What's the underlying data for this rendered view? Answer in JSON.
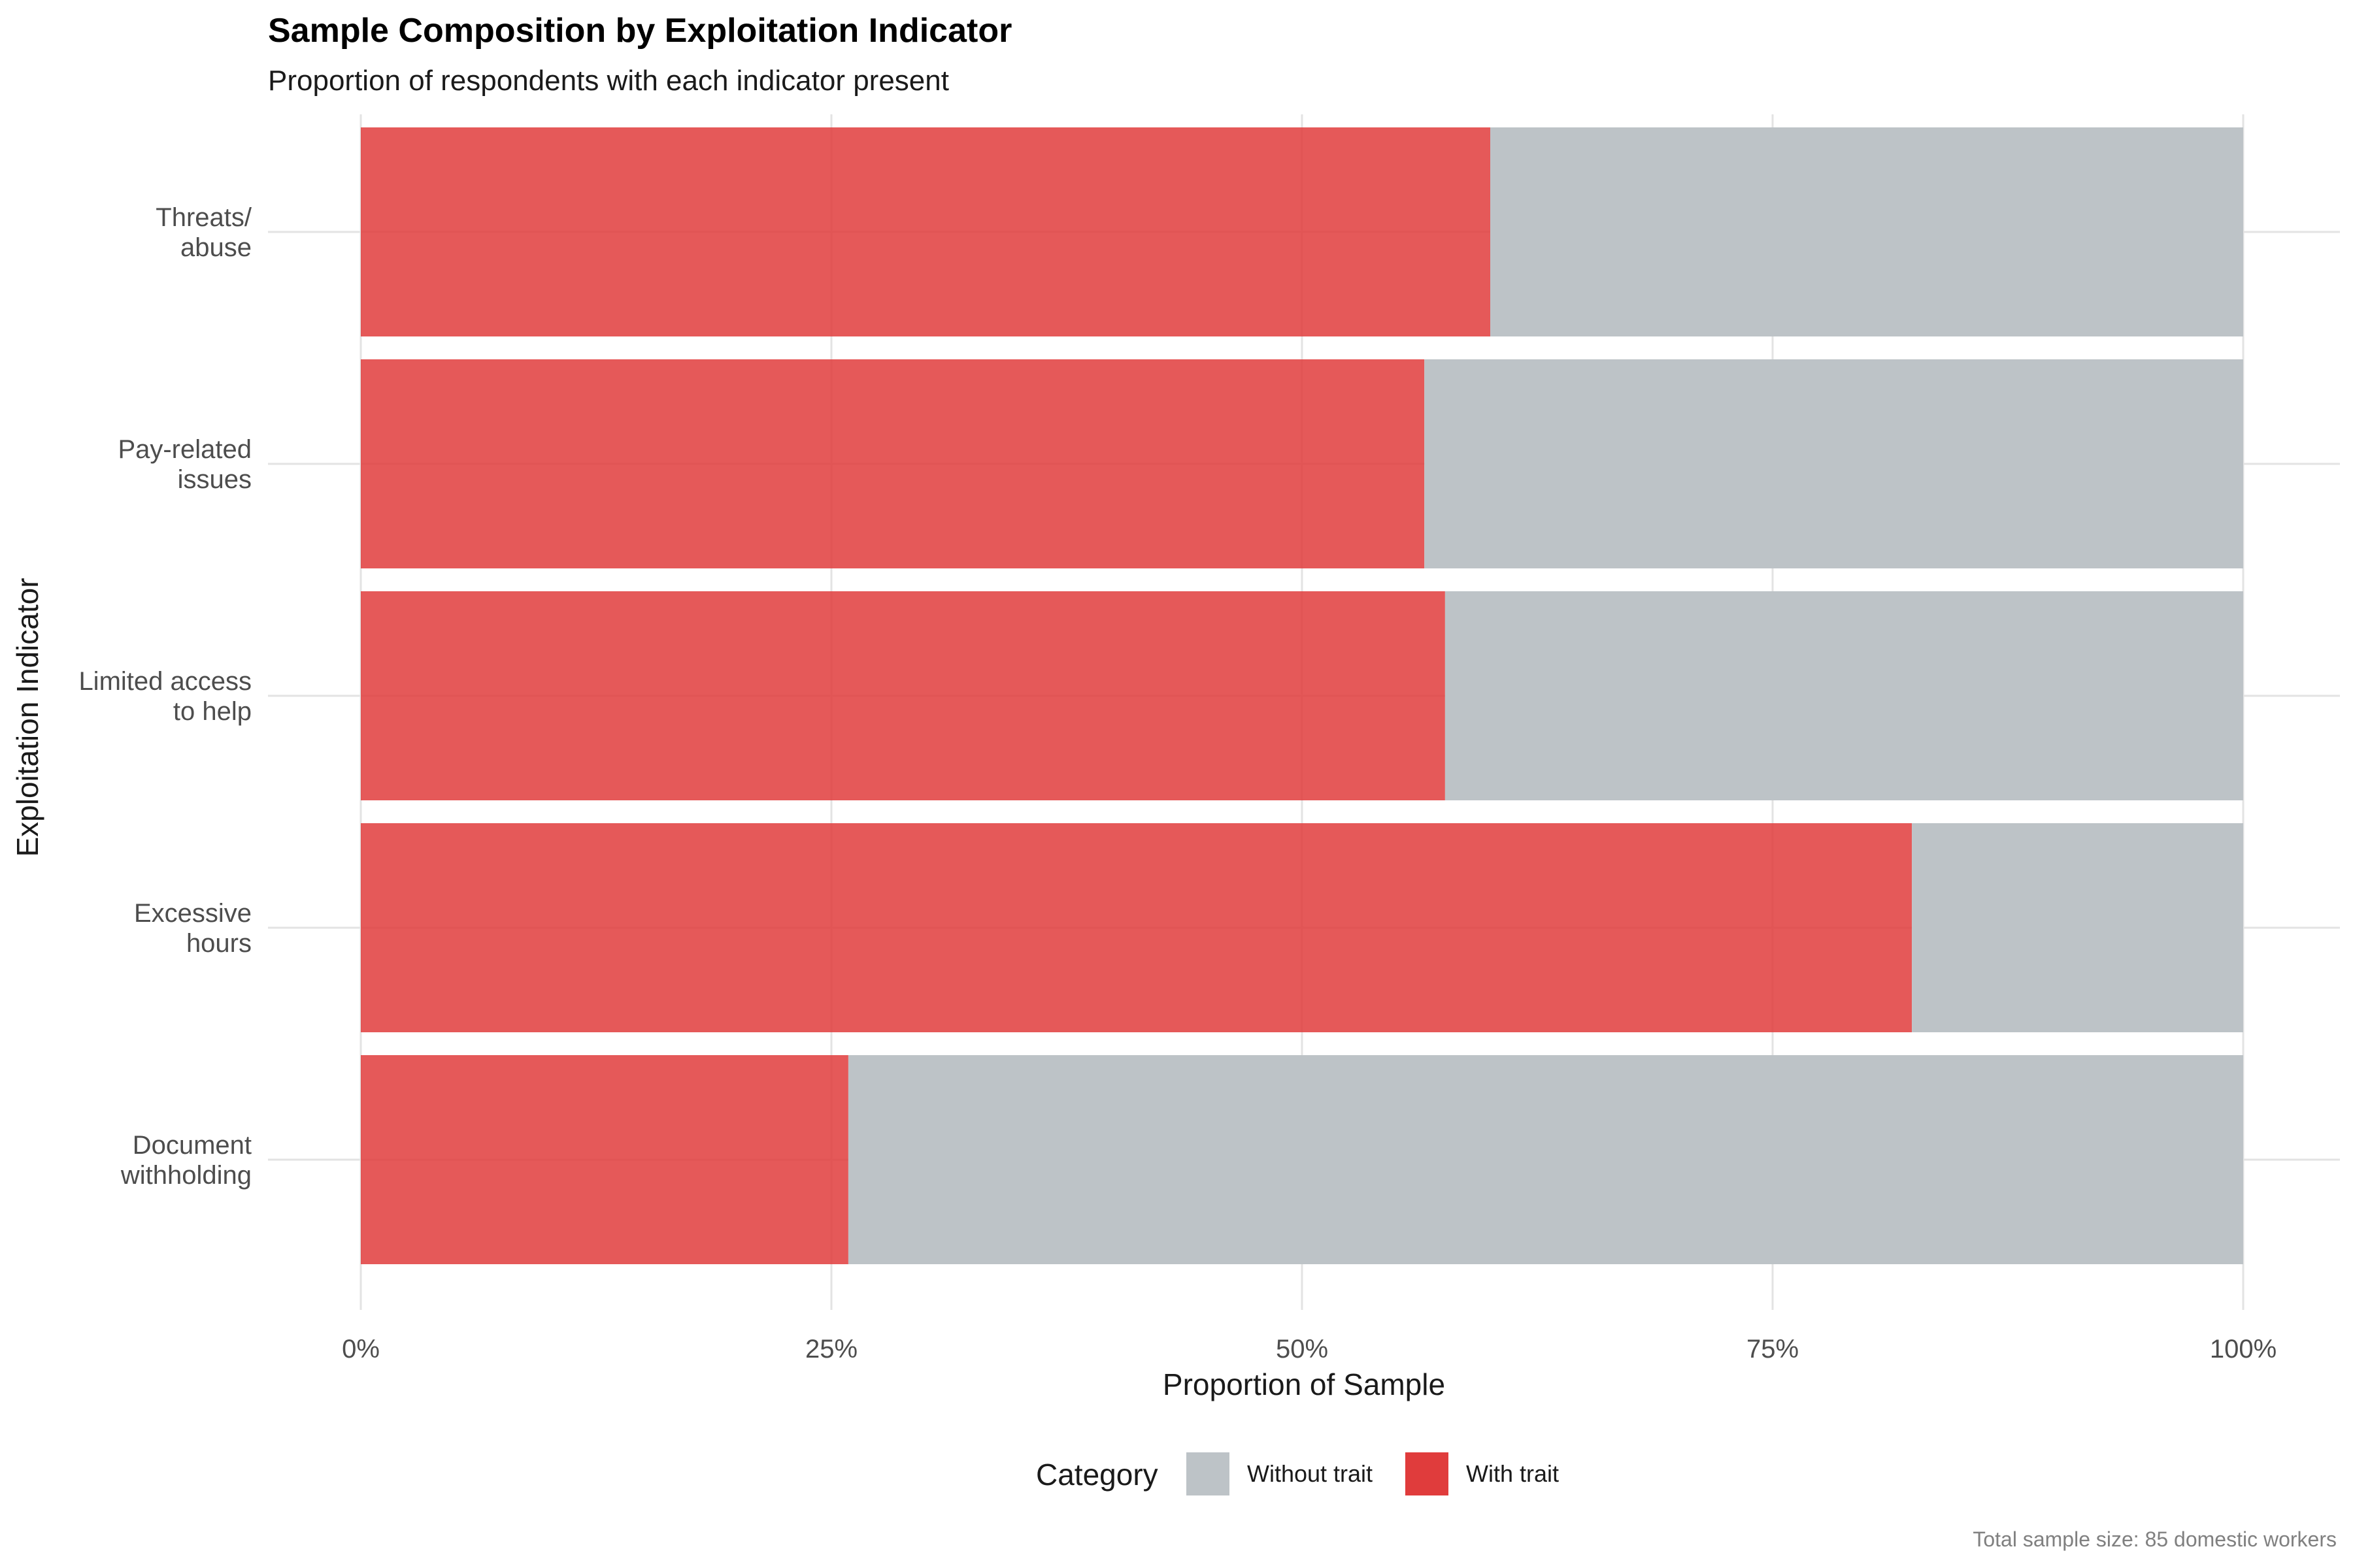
{
  "chart_data": {
    "type": "bar",
    "orientation": "horizontal",
    "stacked": true,
    "normalized": true,
    "title": "Sample Composition by Exploitation Indicator",
    "subtitle": "Proportion of respondents with each indicator present",
    "xlabel": "Proportion of Sample",
    "ylabel": "Exploitation Indicator",
    "caption": "Total sample size: 85 domestic workers",
    "xlim": [
      0,
      1
    ],
    "x_ticks": [
      {
        "value": 0,
        "label": "0%"
      },
      {
        "value": 0.25,
        "label": "25%"
      },
      {
        "value": 0.5,
        "label": "50%"
      },
      {
        "value": 0.75,
        "label": "75%"
      },
      {
        "value": 1,
        "label": "100%"
      }
    ],
    "categories": [
      [
        "Document",
        "withholding"
      ],
      [
        "Excessive",
        "hours"
      ],
      [
        "Limited access",
        "to help"
      ],
      [
        "Pay-related",
        "issues"
      ],
      [
        "Threats/",
        "abuse"
      ]
    ],
    "series": [
      {
        "name": "With trait",
        "color": "#E03C3C",
        "values": [
          0.259,
          0.824,
          0.576,
          0.565,
          0.6
        ]
      },
      {
        "name": "Without trait",
        "color": "#BDC3C7",
        "values": [
          0.741,
          0.176,
          0.424,
          0.435,
          0.4
        ]
      }
    ],
    "legend": {
      "title": "Category",
      "position": "bottom",
      "items": [
        {
          "label": "Without trait",
          "color": "#BDC3C7"
        },
        {
          "label": "With trait",
          "color": "#E03C3C"
        }
      ]
    },
    "grid": true
  }
}
